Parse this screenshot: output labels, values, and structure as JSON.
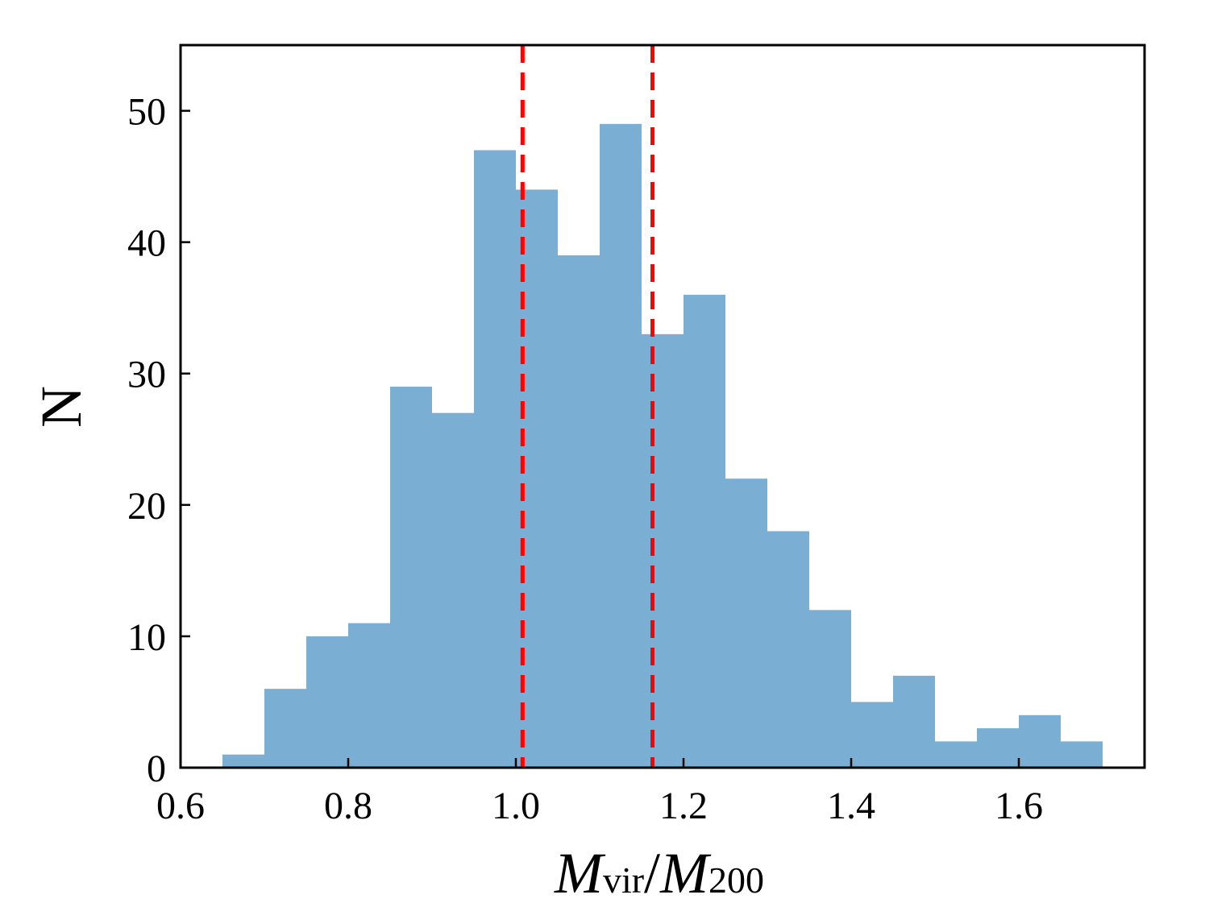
{
  "chart_data": {
    "type": "bar",
    "title": "",
    "xlabel": {
      "main": "M",
      "sub1": "vir",
      "sep": "/",
      "main2": "M",
      "sub2": "200"
    },
    "ylabel": "N",
    "xlim": [
      0.6,
      1.75
    ],
    "ylim": [
      0,
      55
    ],
    "bin_width": 0.05,
    "bins": [
      {
        "x0": 0.65,
        "value": 1
      },
      {
        "x0": 0.7,
        "value": 6
      },
      {
        "x0": 0.75,
        "value": 10
      },
      {
        "x0": 0.8,
        "value": 11
      },
      {
        "x0": 0.85,
        "value": 29
      },
      {
        "x0": 0.9,
        "value": 27
      },
      {
        "x0": 0.95,
        "value": 47
      },
      {
        "x0": 1.0,
        "value": 44
      },
      {
        "x0": 1.05,
        "value": 39
      },
      {
        "x0": 1.1,
        "value": 49
      },
      {
        "x0": 1.15,
        "value": 33
      },
      {
        "x0": 1.2,
        "value": 36
      },
      {
        "x0": 1.25,
        "value": 22
      },
      {
        "x0": 1.3,
        "value": 18
      },
      {
        "x0": 1.35,
        "value": 12
      },
      {
        "x0": 1.4,
        "value": 5
      },
      {
        "x0": 1.45,
        "value": 7
      },
      {
        "x0": 1.5,
        "value": 2
      },
      {
        "x0": 1.55,
        "value": 3
      },
      {
        "x0": 1.6,
        "value": 4
      },
      {
        "x0": 1.65,
        "value": 2
      }
    ],
    "reference_lines": [
      {
        "x": 1.008,
        "style": "dashed",
        "color": "#ff0000"
      },
      {
        "x": 1.163,
        "style": "dashed",
        "color": "#ff0000"
      }
    ],
    "xticks": [
      "0.6",
      "0.8",
      "1.0",
      "1.2",
      "1.4",
      "1.6"
    ],
    "yticks": [
      "0",
      "10",
      "20",
      "30",
      "40",
      "50"
    ],
    "bar_color": "#7aaed2",
    "grid": false
  }
}
